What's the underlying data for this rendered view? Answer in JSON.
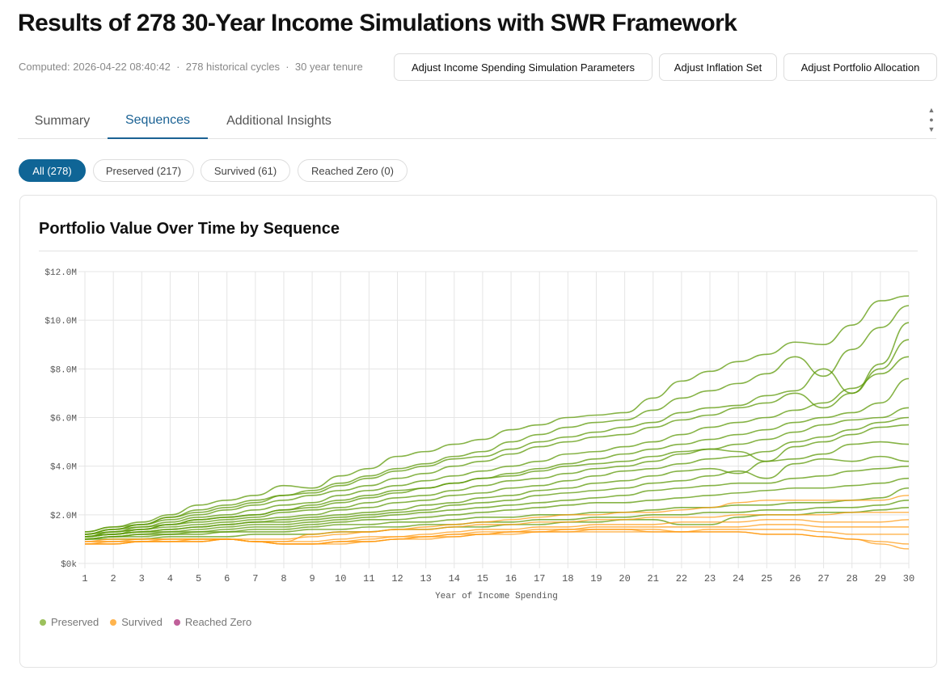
{
  "title": "Results of 278 30-Year Income Simulations with SWR Framework",
  "meta": {
    "computed": "Computed: 2026-04-22 08:40:42",
    "cycles": "278 historical cycles",
    "tenure": "30 year tenure",
    "sep": "·"
  },
  "buttons": {
    "income": "Adjust Income Spending Simulation Parameters",
    "inflation": "Adjust Inflation Set",
    "allocation": "Adjust Portfolio Allocation"
  },
  "tabs": [
    {
      "label": "Summary"
    },
    {
      "label": "Sequences",
      "active": true
    },
    {
      "label": "Additional Insights"
    }
  ],
  "filters": [
    {
      "label": "All (278)",
      "active": true
    },
    {
      "label": "Preserved (217)"
    },
    {
      "label": "Survived (61)"
    },
    {
      "label": "Reached Zero (0)"
    }
  ],
  "colors": {
    "accent": "#0f6596",
    "preserved": "#5e9a08",
    "survived": "#ff9a10",
    "reached_zero": "#c0609a"
  },
  "chart_data": {
    "type": "line",
    "title": "Portfolio Value Over Time by Sequence",
    "xlabel": "Year of Income Spending",
    "ylabel": "",
    "x": [
      1,
      2,
      3,
      4,
      5,
      6,
      7,
      8,
      9,
      10,
      11,
      12,
      13,
      14,
      15,
      16,
      17,
      18,
      19,
      20,
      21,
      22,
      23,
      24,
      25,
      26,
      27,
      28,
      29,
      30
    ],
    "xlim": [
      1,
      30
    ],
    "ylim": [
      0,
      12
    ],
    "yticks": [
      "$0k",
      "$2.0M",
      "$4.0M",
      "$6.0M",
      "$8.0M",
      "$10.0M",
      "$12.0M"
    ],
    "grid": true,
    "legend_position": "bottom-left",
    "unit": "$M",
    "legend": [
      {
        "name": "Preserved",
        "key": "preserved"
      },
      {
        "name": "Survived",
        "key": "survived"
      },
      {
        "name": "Reached Zero",
        "key": "reached_zero"
      }
    ],
    "series": [
      {
        "category": "preserved",
        "values": [
          1.3,
          1.5,
          1.7,
          2.0,
          2.4,
          2.6,
          2.8,
          3.2,
          3.1,
          3.6,
          3.9,
          4.4,
          4.6,
          4.9,
          5.1,
          5.5,
          5.7,
          6.0,
          6.1,
          6.2,
          6.8,
          7.5,
          7.9,
          8.3,
          8.6,
          9.1,
          9.0,
          9.8,
          10.8,
          11.0
        ]
      },
      {
        "category": "preserved",
        "values": [
          1.3,
          1.5,
          1.6,
          1.9,
          2.2,
          2.4,
          2.6,
          2.8,
          3.0,
          3.3,
          3.6,
          3.9,
          4.1,
          4.4,
          4.6,
          5.0,
          5.3,
          5.6,
          5.8,
          5.9,
          6.3,
          6.8,
          7.1,
          7.4,
          7.8,
          8.5,
          7.7,
          8.8,
          9.7,
          10.6
        ]
      },
      {
        "category": "preserved",
        "values": [
          1.2,
          1.4,
          1.6,
          1.8,
          2.0,
          2.2,
          2.4,
          2.6,
          2.8,
          3.0,
          3.2,
          3.5,
          3.7,
          4.0,
          4.2,
          4.5,
          4.8,
          5.0,
          5.2,
          5.3,
          5.6,
          5.9,
          6.1,
          6.4,
          6.6,
          7.0,
          6.4,
          7.0,
          8.2,
          9.9
        ]
      },
      {
        "category": "preserved",
        "values": [
          1.2,
          1.4,
          1.5,
          1.7,
          1.9,
          2.0,
          2.2,
          2.4,
          2.5,
          2.8,
          3.0,
          3.2,
          3.4,
          3.6,
          3.8,
          4.0,
          4.2,
          4.5,
          4.6,
          4.8,
          5.0,
          5.3,
          5.6,
          5.8,
          6.0,
          6.3,
          6.6,
          7.2,
          7.8,
          8.5
        ]
      },
      {
        "category": "preserved",
        "values": [
          1.2,
          1.3,
          1.5,
          1.6,
          1.8,
          1.9,
          2.0,
          2.2,
          2.3,
          2.5,
          2.7,
          2.9,
          3.1,
          3.3,
          3.5,
          3.7,
          3.9,
          4.1,
          4.3,
          4.5,
          4.7,
          4.9,
          5.1,
          5.3,
          5.5,
          5.8,
          6.0,
          6.2,
          6.6,
          7.6
        ]
      },
      {
        "category": "preserved",
        "values": [
          1.1,
          1.3,
          1.4,
          1.6,
          1.7,
          1.8,
          1.9,
          2.1,
          2.2,
          2.3,
          2.5,
          2.7,
          2.8,
          3.0,
          3.2,
          3.4,
          3.5,
          3.7,
          3.9,
          4.0,
          4.2,
          4.5,
          4.7,
          4.9,
          5.1,
          5.4,
          5.7,
          5.9,
          6.0,
          6.4
        ]
      },
      {
        "category": "preserved",
        "values": [
          1.1,
          1.2,
          1.4,
          1.5,
          1.6,
          1.7,
          1.8,
          1.9,
          2.0,
          2.2,
          2.3,
          2.5,
          2.6,
          2.8,
          2.9,
          3.1,
          3.2,
          3.4,
          3.6,
          3.8,
          3.9,
          4.1,
          4.3,
          4.4,
          4.6,
          5.0,
          5.2,
          5.5,
          5.8,
          6.0
        ]
      },
      {
        "category": "preserved",
        "values": [
          1.1,
          1.2,
          1.3,
          1.4,
          1.5,
          1.6,
          1.7,
          1.8,
          1.9,
          2.0,
          2.1,
          2.2,
          2.4,
          2.5,
          2.7,
          2.8,
          3.0,
          3.1,
          3.3,
          3.4,
          3.6,
          3.8,
          3.9,
          3.7,
          4.2,
          4.3,
          4.5,
          4.9,
          5.0,
          4.9
        ]
      },
      {
        "category": "preserved",
        "values": [
          1.1,
          1.2,
          1.3,
          1.4,
          1.5,
          1.6,
          1.7,
          1.7,
          1.8,
          1.9,
          2.0,
          2.1,
          2.2,
          2.4,
          2.5,
          2.6,
          2.8,
          2.9,
          3.0,
          3.1,
          3.3,
          3.4,
          3.6,
          3.8,
          3.5,
          4.1,
          4.3,
          4.2,
          4.4,
          4.2
        ]
      },
      {
        "category": "preserved",
        "values": [
          1.1,
          1.2,
          1.3,
          1.3,
          1.4,
          1.5,
          1.6,
          1.6,
          1.7,
          1.8,
          1.9,
          2.0,
          2.1,
          2.2,
          2.3,
          2.4,
          2.5,
          2.6,
          2.7,
          2.8,
          3.0,
          3.1,
          3.2,
          3.3,
          3.3,
          3.5,
          3.6,
          3.8,
          3.9,
          4.0
        ]
      },
      {
        "category": "preserved",
        "values": [
          1.0,
          1.1,
          1.2,
          1.3,
          1.3,
          1.4,
          1.5,
          1.5,
          1.6,
          1.7,
          1.8,
          1.8,
          1.9,
          2.0,
          2.1,
          2.2,
          2.3,
          2.4,
          2.5,
          2.5,
          2.6,
          2.7,
          2.8,
          2.9,
          3.0,
          3.1,
          3.1,
          3.2,
          3.3,
          3.5
        ]
      },
      {
        "category": "preserved",
        "values": [
          1.0,
          1.1,
          1.2,
          1.2,
          1.3,
          1.3,
          1.4,
          1.4,
          1.5,
          1.6,
          1.6,
          1.7,
          1.7,
          1.8,
          1.9,
          1.9,
          2.0,
          2.0,
          2.1,
          2.1,
          2.2,
          2.3,
          2.3,
          2.4,
          2.4,
          2.5,
          2.5,
          2.6,
          2.7,
          3.1
        ]
      },
      {
        "category": "preserved",
        "values": [
          1.0,
          1.1,
          1.1,
          1.2,
          1.2,
          1.3,
          1.3,
          1.3,
          1.4,
          1.4,
          1.5,
          1.5,
          1.6,
          1.6,
          1.7,
          1.7,
          1.8,
          1.8,
          1.9,
          1.9,
          2.0,
          2.0,
          2.1,
          2.1,
          2.2,
          2.2,
          2.3,
          2.3,
          2.4,
          2.6
        ]
      },
      {
        "category": "preserved",
        "values": [
          1.0,
          1.0,
          1.0,
          1.1,
          1.1,
          1.1,
          1.2,
          1.2,
          1.2,
          1.3,
          1.3,
          1.4,
          1.4,
          1.5,
          1.5,
          1.6,
          1.6,
          1.7,
          1.7,
          1.8,
          1.8,
          1.6,
          1.6,
          1.9,
          2.0,
          2.0,
          2.1,
          2.1,
          2.2,
          2.3
        ]
      },
      {
        "category": "preserved",
        "values": [
          1.2,
          1.4,
          1.6,
          1.9,
          2.1,
          2.3,
          2.5,
          2.8,
          2.9,
          3.2,
          3.5,
          3.8,
          4.0,
          4.3,
          4.4,
          4.7,
          5.0,
          5.2,
          5.4,
          5.6,
          5.8,
          6.2,
          6.4,
          6.5,
          6.9,
          7.1,
          8.0,
          7.0,
          8.0,
          9.2
        ]
      },
      {
        "category": "preserved",
        "values": [
          1.1,
          1.3,
          1.4,
          1.6,
          1.8,
          1.9,
          2.0,
          2.2,
          2.4,
          2.6,
          2.8,
          3.0,
          3.1,
          3.3,
          3.5,
          3.6,
          3.8,
          4.0,
          4.1,
          4.2,
          4.4,
          4.6,
          4.7,
          4.6,
          4.2,
          4.8,
          5.0,
          5.3,
          5.6,
          5.7
        ]
      },
      {
        "category": "survived",
        "values": [
          0.9,
          1.0,
          1.0,
          1.0,
          1.0,
          1.0,
          1.0,
          1.0,
          1.1,
          1.2,
          1.3,
          1.4,
          1.5,
          1.6,
          1.7,
          1.8,
          1.9,
          2.0,
          2.0,
          2.1,
          2.1,
          2.2,
          2.3,
          2.5,
          2.6,
          2.6,
          2.6,
          2.6,
          2.6,
          2.8
        ]
      },
      {
        "category": "survived",
        "values": [
          0.9,
          0.9,
          1.0,
          1.0,
          1.0,
          1.0,
          0.9,
          0.9,
          1.2,
          1.3,
          1.3,
          1.4,
          1.4,
          1.5,
          1.6,
          1.6,
          1.7,
          1.7,
          1.8,
          1.8,
          1.9,
          1.9,
          1.9,
          2.0,
          2.0,
          2.0,
          2.0,
          2.1,
          2.1,
          2.1
        ]
      },
      {
        "category": "survived",
        "values": [
          0.9,
          0.9,
          0.9,
          1.0,
          1.0,
          1.0,
          0.9,
          0.9,
          0.9,
          1.0,
          1.1,
          1.1,
          1.2,
          1.3,
          1.4,
          1.4,
          1.5,
          1.5,
          1.6,
          1.6,
          1.6,
          1.7,
          1.7,
          1.7,
          1.8,
          1.8,
          1.7,
          1.7,
          1.7,
          1.8
        ]
      },
      {
        "category": "survived",
        "values": [
          0.8,
          0.9,
          0.9,
          0.9,
          1.0,
          1.0,
          0.9,
          0.8,
          0.8,
          0.9,
          1.0,
          1.1,
          1.1,
          1.2,
          1.3,
          1.3,
          1.4,
          1.4,
          1.5,
          1.5,
          1.5,
          1.5,
          1.5,
          1.5,
          1.6,
          1.6,
          1.5,
          1.5,
          1.5,
          1.5
        ]
      },
      {
        "category": "survived",
        "values": [
          0.8,
          0.8,
          0.9,
          0.9,
          0.9,
          1.0,
          0.9,
          0.8,
          0.8,
          0.9,
          0.9,
          1.0,
          1.1,
          1.2,
          1.2,
          1.3,
          1.3,
          1.4,
          1.4,
          1.4,
          1.4,
          1.3,
          1.4,
          1.4,
          1.4,
          1.4,
          1.3,
          1.2,
          1.2,
          1.2
        ]
      },
      {
        "category": "survived",
        "values": [
          0.8,
          0.8,
          0.9,
          0.9,
          0.9,
          1.0,
          0.9,
          0.8,
          0.8,
          0.9,
          0.9,
          1.0,
          1.1,
          1.1,
          1.2,
          1.3,
          1.3,
          1.3,
          1.4,
          1.4,
          1.3,
          1.3,
          1.3,
          1.3,
          1.2,
          1.2,
          1.1,
          1.0,
          0.8,
          0.6
        ]
      },
      {
        "category": "survived",
        "values": [
          0.8,
          0.8,
          0.9,
          0.9,
          0.9,
          1.0,
          0.9,
          0.8,
          0.8,
          0.8,
          0.9,
          1.0,
          1.0,
          1.1,
          1.2,
          1.2,
          1.3,
          1.3,
          1.3,
          1.3,
          1.3,
          1.3,
          1.3,
          1.3,
          1.2,
          1.2,
          1.1,
          1.0,
          0.9,
          0.8
        ]
      }
    ]
  }
}
